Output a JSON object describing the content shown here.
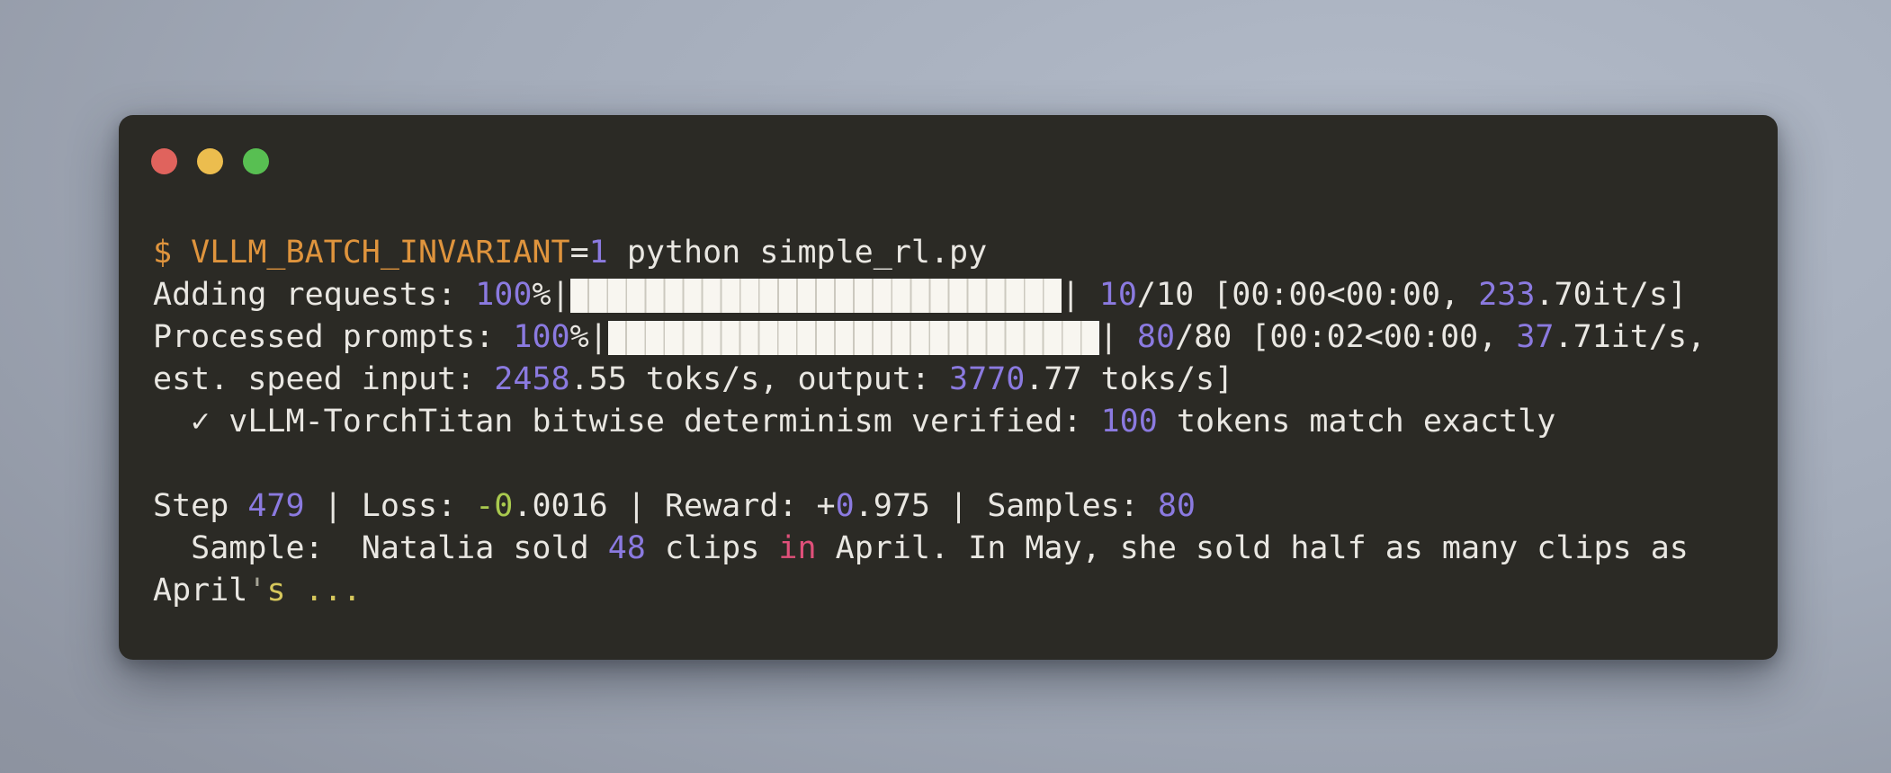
{
  "colors": {
    "background_light": "#b3bbc9",
    "background_dark": "#838996",
    "window_bg": "#2b2a25",
    "fg": "#e9e7e2",
    "orange": "#df943d",
    "purple": "#8b7ae0",
    "green": "#a9c94e",
    "pink": "#e0507a",
    "yellow": "#d6c75c",
    "gray": "#a5a496",
    "bar_fill": "#f8f6f0",
    "bar_line": "#ccc9bf",
    "light_red": "#e0635d",
    "light_yellow": "#ecbd4e",
    "light_green": "#58bf52"
  },
  "window": {
    "controls": [
      {
        "name": "close"
      },
      {
        "name": "minimize"
      },
      {
        "name": "zoom"
      }
    ]
  },
  "terminal": {
    "lines": [
      {
        "segments": [
          {
            "color": "orange",
            "text": "$ VLLM_BATCH_INVARIANT"
          },
          {
            "color": "fg",
            "text": "="
          },
          {
            "color": "purple",
            "text": "1"
          },
          {
            "color": "fg",
            "text": " python simple_rl.py"
          }
        ]
      },
      {
        "bar": {
          "blocks": 26,
          "full": true,
          "percent": "100%"
        },
        "segments": [
          {
            "color": "fg",
            "text": "Adding requests: "
          },
          {
            "color": "purple",
            "text": "100"
          },
          {
            "color": "fg",
            "text": "%|"
          },
          {
            "color": "fg",
            "text": "| "
          },
          {
            "color": "purple",
            "text": "10"
          },
          {
            "color": "fg",
            "text": "/10 [00:00<00:00, "
          },
          {
            "color": "purple",
            "text": "233"
          },
          {
            "color": "fg",
            "text": ".70it/s]"
          }
        ]
      },
      {
        "bar": {
          "blocks": 26,
          "full": true,
          "percent": "100%"
        },
        "segments": [
          {
            "color": "fg",
            "text": "Processed prompts: "
          },
          {
            "color": "purple",
            "text": "100"
          },
          {
            "color": "fg",
            "text": "%|"
          },
          {
            "color": "fg",
            "text": "| "
          },
          {
            "color": "purple",
            "text": "80"
          },
          {
            "color": "fg",
            "text": "/80 [00:02<00:00, "
          },
          {
            "color": "purple",
            "text": "37"
          },
          {
            "color": "fg",
            "text": ".71it/s,"
          }
        ]
      },
      {
        "segments": [
          {
            "color": "fg",
            "text": "est. speed input: "
          },
          {
            "color": "purple",
            "text": "2458"
          },
          {
            "color": "fg",
            "text": ".55 toks/s, output: "
          },
          {
            "color": "purple",
            "text": "3770"
          },
          {
            "color": "fg",
            "text": ".77 toks/s]"
          }
        ]
      },
      {
        "segments": [
          {
            "color": "fg",
            "text": "  ✓ vLLM-TorchTitan bitwise determinism verified: "
          },
          {
            "color": "purple",
            "text": "100"
          },
          {
            "color": "fg",
            "text": " tokens match exactly"
          }
        ]
      },
      {
        "segments": []
      },
      {
        "segments": [
          {
            "color": "fg",
            "text": "Step "
          },
          {
            "color": "purple",
            "text": "479"
          },
          {
            "color": "fg",
            "text": " | Loss: "
          },
          {
            "color": "green",
            "text": "-0"
          },
          {
            "color": "fg",
            "text": ".0016 | Reward: +"
          },
          {
            "color": "purple",
            "text": "0"
          },
          {
            "color": "fg",
            "text": ".975 | Samples: "
          },
          {
            "color": "purple",
            "text": "80"
          }
        ]
      },
      {
        "segments": [
          {
            "color": "fg",
            "text": "  Sample:  Natalia sold "
          },
          {
            "color": "purple",
            "text": "48"
          },
          {
            "color": "fg",
            "text": " clips "
          },
          {
            "color": "pink",
            "text": "in"
          },
          {
            "color": "fg",
            "text": " April. In May, she sold half as many clips as"
          }
        ]
      },
      {
        "segments": [
          {
            "color": "fg",
            "text": "April"
          },
          {
            "color": "gray",
            "text": "'"
          },
          {
            "color": "yellow",
            "text": "s ..."
          }
        ]
      }
    ]
  }
}
